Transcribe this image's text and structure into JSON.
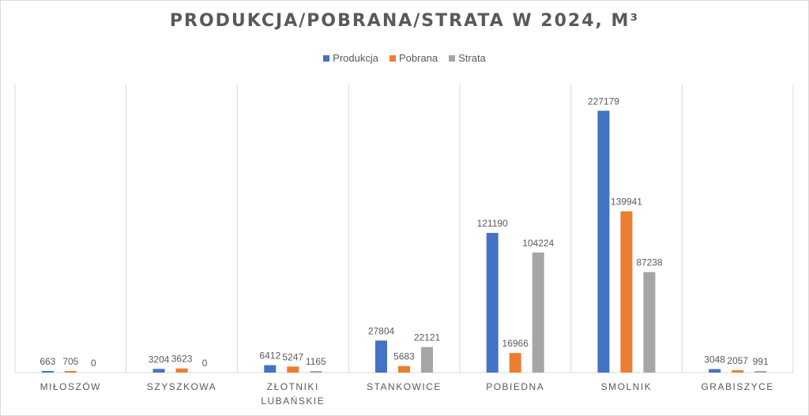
{
  "chart_data": {
    "type": "bar",
    "title": "PRODUKCJA/POBRANA/STRATA  W 2024, M³",
    "categories": [
      "MIŁOSZÓW",
      "SZYSZKOWA",
      "ZŁOTNIKI LUBAŃSKIE",
      "STANKOWICE",
      "POBIEDNA",
      "SMOLNIK",
      "GRABISZYCE"
    ],
    "series": [
      {
        "name": "Produkcja",
        "color": "#4472c4",
        "values": [
          663,
          3204,
          6412,
          27804,
          121190,
          227179,
          3048
        ]
      },
      {
        "name": "Pobrana",
        "color": "#ed7d31",
        "values": [
          705,
          3623,
          5247,
          5683,
          16966,
          139941,
          2057
        ]
      },
      {
        "name": "Strata",
        "color": "#a5a5a5",
        "values": [
          0,
          0,
          1165,
          22121,
          104224,
          87238,
          991
        ]
      }
    ],
    "data_labels": true,
    "legend_position": "top-center",
    "ylim": [
      0,
      250000
    ],
    "grid": "vertical category separators only",
    "y_axis_visible": false
  }
}
